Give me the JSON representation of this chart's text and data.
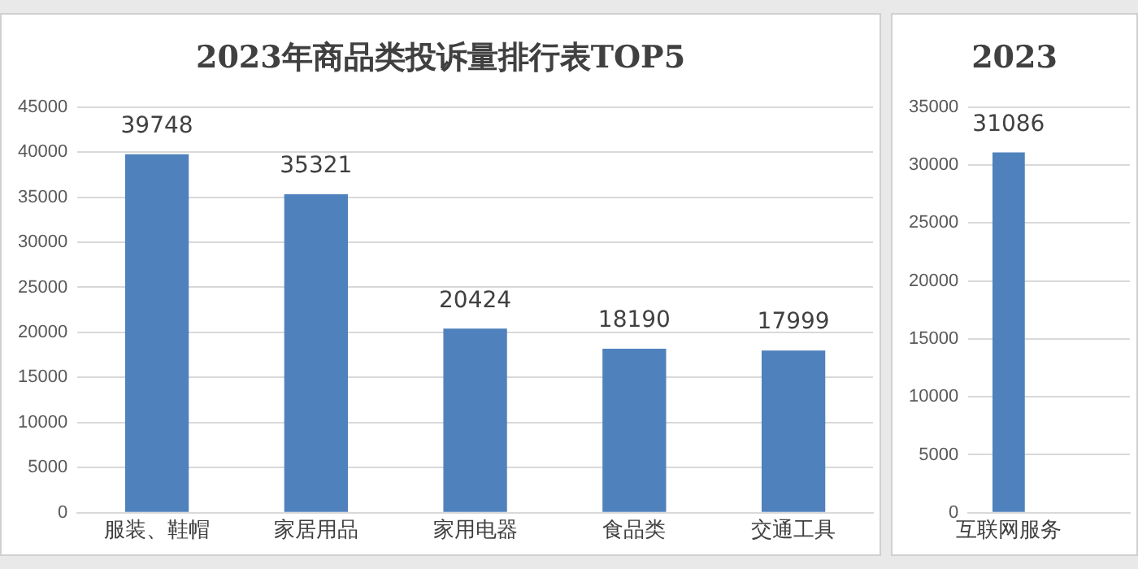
{
  "chart_data": [
    {
      "type": "bar",
      "title": "2023年商品类投诉量排行表TOP5",
      "categories": [
        "服装、鞋帽",
        "家居用品",
        "家用电器",
        "食品类",
        "交通工具"
      ],
      "values": [
        39748,
        35321,
        20424,
        18190,
        17999
      ],
      "color": "#4f81bd",
      "ylim": [
        0,
        45000
      ],
      "yticks": [
        0,
        5000,
        10000,
        15000,
        20000,
        25000,
        30000,
        35000,
        40000,
        45000
      ],
      "grid": "y",
      "data_labels": true
    },
    {
      "type": "bar",
      "title": "2023",
      "categories": [
        "互联网服务",
        null
      ],
      "values": [
        31086,
        null
      ],
      "color": "#4f81bd",
      "ylim": [
        0,
        35000
      ],
      "yticks": [
        0,
        5000,
        10000,
        15000,
        20000,
        25000,
        30000,
        35000
      ],
      "grid": "y",
      "data_labels": true
    }
  ]
}
